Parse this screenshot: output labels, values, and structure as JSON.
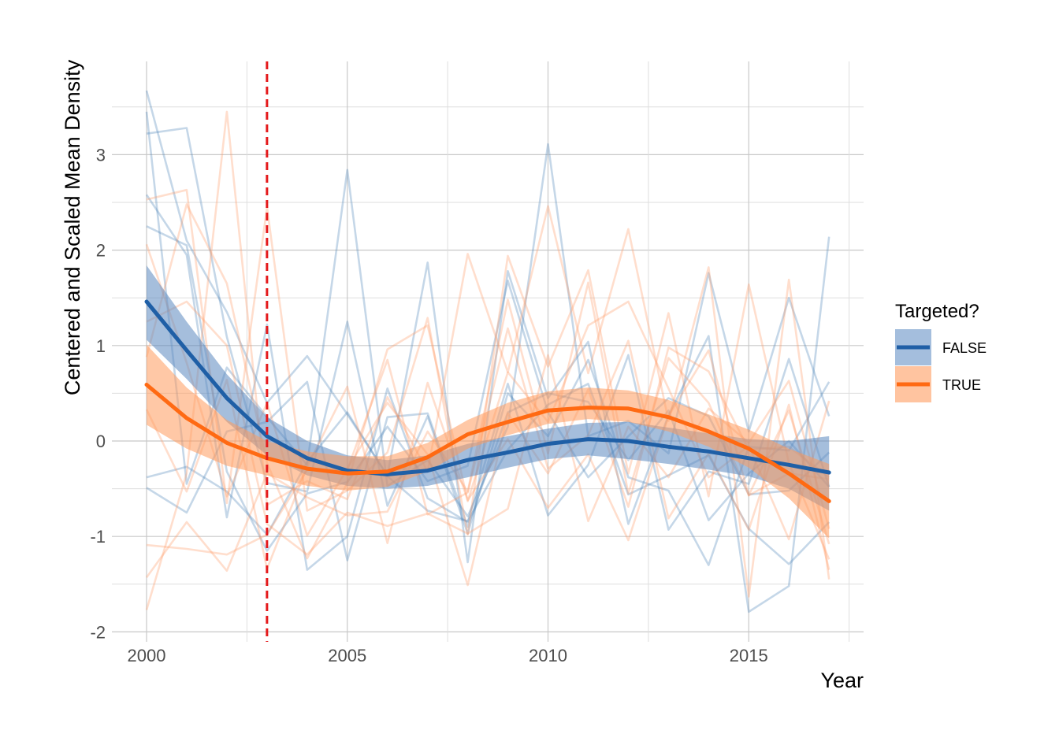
{
  "chart_data": {
    "type": "line",
    "title": "",
    "xlabel": "Year",
    "ylabel": "Centered and Scaled Mean Density",
    "xlim": [
      1999.15,
      2017.35
    ],
    "ylim": [
      -2,
      3.9
    ],
    "x_ticks": [
      2000,
      2005,
      2010,
      2015
    ],
    "y_ticks": [
      -2,
      -1,
      0,
      1,
      2,
      3
    ],
    "x_tick_labels": [
      "2000",
      "2005",
      "2010",
      "2015"
    ],
    "y_tick_labels": [
      "-2",
      "-1",
      "0",
      "1",
      "2",
      "3"
    ],
    "grid": true,
    "vline": {
      "x": 2003,
      "color": "#e41a1c",
      "style": "dashed"
    },
    "legend": {
      "title": "Targeted?",
      "position": "right",
      "entries": [
        {
          "label": "FALSE",
          "color": "#1f5fa6",
          "fill": "#a4bedd"
        },
        {
          "label": "TRUE",
          "color": "#ff6a13",
          "fill": "#ffc4a0"
        }
      ]
    },
    "years": [
      2000,
      2001,
      2002,
      2003,
      2004,
      2005,
      2006,
      2007,
      2008,
      2009,
      2010,
      2011,
      2012,
      2013,
      2014,
      2015,
      2016,
      2017
    ],
    "smooth": [
      {
        "name": "FALSE",
        "color": "#1f5fa6",
        "fill": "#5b88bf",
        "fit": [
          1.46,
          0.95,
          0.45,
          0.05,
          -0.18,
          -0.31,
          -0.35,
          -0.31,
          -0.2,
          -0.12,
          -0.03,
          0.02,
          0.0,
          -0.06,
          -0.11,
          -0.18,
          -0.25,
          -0.33
        ],
        "lower": [
          1.06,
          0.65,
          0.2,
          -0.15,
          -0.36,
          -0.47,
          -0.5,
          -0.47,
          -0.38,
          -0.28,
          -0.19,
          -0.15,
          -0.19,
          -0.24,
          -0.3,
          -0.37,
          -0.5,
          -0.73
        ],
        "upper": [
          1.84,
          1.25,
          0.7,
          0.25,
          0.0,
          -0.15,
          -0.2,
          -0.15,
          -0.03,
          0.05,
          0.13,
          0.19,
          0.2,
          0.14,
          0.08,
          0.02,
          0.0,
          0.05
        ]
      },
      {
        "name": "TRUE",
        "color": "#ff6a13",
        "fill": "#ff9a5c",
        "fit": [
          0.59,
          0.24,
          -0.02,
          -0.18,
          -0.29,
          -0.34,
          -0.32,
          -0.17,
          0.07,
          0.2,
          0.32,
          0.35,
          0.34,
          0.25,
          0.1,
          -0.08,
          -0.34,
          -0.63
        ],
        "lower": [
          0.17,
          -0.08,
          -0.26,
          -0.36,
          -0.47,
          -0.52,
          -0.48,
          -0.32,
          -0.08,
          0.06,
          0.18,
          0.23,
          0.2,
          0.1,
          -0.06,
          -0.28,
          -0.6,
          -1.02
        ],
        "upper": [
          1.01,
          0.56,
          0.22,
          0.0,
          -0.11,
          -0.16,
          -0.16,
          -0.02,
          0.22,
          0.4,
          0.52,
          0.56,
          0.53,
          0.43,
          0.28,
          0.12,
          -0.08,
          -0.24
        ]
      }
    ],
    "series": [
      {
        "group": "FALSE",
        "values": [
          3.67,
          2.1,
          1.35,
          0.4,
          0.89,
          0.28,
          -0.36,
          1.87,
          -1.27,
          1.78,
          0.45,
          1.04,
          -0.87,
          0.27,
          1.1,
          -1.79,
          -1.52,
          2.14
        ]
      },
      {
        "group": "FALSE",
        "values": [
          3.45,
          -0.45,
          0.77,
          0.25,
          -0.25,
          2.84,
          -0.47,
          -0.2,
          -0.79,
          0.15,
          3.11,
          0.05,
          0.21,
          -0.13,
          1.76,
          0.1,
          1.5,
          0.26
        ]
      },
      {
        "group": "FALSE",
        "values": [
          3.22,
          3.28,
          1.09,
          -0.44,
          -0.53,
          1.25,
          -0.68,
          0.26,
          -0.97,
          0.5,
          0.05,
          0.85,
          -0.38,
          -0.52,
          -1.3,
          -0.06,
          -0.1,
          0.62
        ]
      },
      {
        "group": "FALSE",
        "values": [
          2.58,
          1.95,
          -0.8,
          1.22,
          -1.35,
          -1.0,
          0.55,
          -0.6,
          -0.85,
          0.6,
          -0.78,
          -0.25,
          0.9,
          -0.93,
          -0.32,
          -0.45,
          0.86,
          -0.48
        ]
      },
      {
        "group": "FALSE",
        "values": [
          2.25,
          2.05,
          -0.32,
          -1.15,
          -0.55,
          -0.43,
          0.15,
          -0.42,
          -0.26,
          1.68,
          0.3,
          -0.38,
          0.05,
          0.45,
          0.26,
          -0.56,
          -0.52,
          -0.12
        ]
      },
      {
        "group": "FALSE",
        "values": [
          -0.38,
          -0.27,
          -0.53,
          -0.98,
          -0.22,
          0.3,
          -0.37,
          -0.73,
          -0.84,
          -0.09,
          0.38,
          0.6,
          -0.56,
          -0.36,
          -0.15,
          -0.92,
          -1.29,
          -0.85
        ]
      },
      {
        "group": "FALSE",
        "values": [
          -0.49,
          -0.75,
          0.1,
          0.2,
          0.62,
          -1.25,
          0.25,
          0.29,
          -0.9,
          0.3,
          0.5,
          0.41,
          -0.2,
          0.32,
          -0.83,
          -0.34,
          0.0,
          -0.48
        ]
      },
      {
        "group": "TRUE",
        "values": [
          -1.77,
          -0.34,
          3.45,
          -0.67,
          -0.42,
          -0.61,
          0.46,
          -0.32,
          1.96,
          0.72,
          2.46,
          0.71,
          2.22,
          0.21,
          1.82,
          -1.63,
          1.69,
          -1.45
        ]
      },
      {
        "group": "TRUE",
        "values": [
          2.53,
          2.63,
          -0.65,
          2.45,
          -0.73,
          -0.52,
          -0.12,
          1.29,
          -0.98,
          1.94,
          0.78,
          1.79,
          -0.34,
          1.34,
          -0.58,
          1.64,
          -0.23,
          -1.24
        ]
      },
      {
        "group": "TRUE",
        "values": [
          0.88,
          2.48,
          1.65,
          -0.23,
          -1.23,
          -0.44,
          0.96,
          1.21,
          -0.63,
          0.72,
          0.2,
          1.21,
          1.46,
          0.55,
          -0.38,
          -0.05,
          -1.03,
          0.42
        ]
      },
      {
        "group": "TRUE",
        "values": [
          -1.09,
          -1.13,
          -1.19,
          -0.98,
          -0.3,
          -0.3,
          0.85,
          -0.77,
          -0.54,
          1.18,
          -0.29,
          0.06,
          1.05,
          -0.81,
          -0.13,
          -0.93,
          0.38,
          -1.35
        ]
      },
      {
        "group": "TRUE",
        "values": [
          -1.43,
          -0.85,
          -1.36,
          -0.34,
          -0.59,
          -0.78,
          -0.74,
          0.1,
          -0.53,
          1.48,
          -0.13,
          1.66,
          -0.55,
          0.87,
          0.4,
          -0.57,
          0.32,
          -1.08
        ]
      },
      {
        "group": "TRUE",
        "values": [
          2.06,
          0.82,
          -0.58,
          0.4,
          -0.99,
          -0.29,
          0.4,
          -0.14,
          -1.51,
          0.29,
          -0.34,
          0.54,
          -0.69,
          0.98,
          0.73,
          -0.09,
          -0.06,
          -0.38
        ]
      },
      {
        "group": "TRUE",
        "values": [
          1.25,
          1.46,
          1.0,
          -0.87,
          -1.19,
          -0.75,
          -0.89,
          -0.76,
          -0.97,
          -0.71,
          0.9,
          -0.84,
          0.15,
          -0.38,
          0.34,
          -0.02,
          0.63,
          -0.92
        ]
      },
      {
        "group": "TRUE",
        "values": [
          0.33,
          -0.53,
          0.64,
          -1.34,
          -0.27,
          0.57,
          -1.07,
          0.61,
          -0.62,
          0.02,
          -0.7,
          -0.14,
          -1.04,
          0.26,
          0.95,
          -0.57,
          -0.34,
          -0.4
        ]
      }
    ]
  }
}
